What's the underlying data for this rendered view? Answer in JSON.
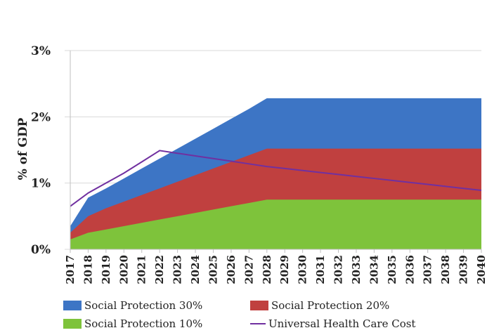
{
  "chart_data": {
    "type": "area",
    "ylabel": "% of GDP",
    "xlabel": "",
    "x": [
      "2017",
      "2018",
      "2019",
      "2020",
      "2021",
      "2022",
      "2023",
      "2024",
      "2025",
      "2026",
      "2027",
      "2028",
      "2029",
      "2030",
      "2031",
      "2032",
      "2033",
      "2034",
      "2035",
      "2036",
      "2037",
      "2038",
      "2039",
      "2040"
    ],
    "y_ticks": [
      "0%",
      "1%",
      "2%",
      "3%"
    ],
    "ylim": [
      0,
      3
    ],
    "grid": "horizontal",
    "legend_position": "bottom",
    "series": [
      {
        "name": "Social Protection 10%",
        "kind": "area",
        "color": "#7ec33b",
        "values": [
          0.15,
          0.25,
          0.3,
          0.35,
          0.4,
          0.45,
          0.5,
          0.55,
          0.6,
          0.65,
          0.7,
          0.75,
          0.75,
          0.75,
          0.75,
          0.75,
          0.75,
          0.75,
          0.75,
          0.75,
          0.75,
          0.75,
          0.75,
          0.75
        ]
      },
      {
        "name": "Social Protection 20%",
        "kind": "area",
        "color": "#c0403f",
        "values": [
          0.25,
          0.5,
          0.62,
          0.72,
          0.82,
          0.92,
          1.02,
          1.12,
          1.22,
          1.32,
          1.42,
          1.52,
          1.52,
          1.52,
          1.52,
          1.52,
          1.52,
          1.52,
          1.52,
          1.52,
          1.52,
          1.52,
          1.52,
          1.52
        ]
      },
      {
        "name": "Social Protection 30%",
        "kind": "area",
        "color": "#3d75c5",
        "values": [
          0.35,
          0.78,
          0.92,
          1.07,
          1.22,
          1.37,
          1.52,
          1.67,
          1.82,
          1.97,
          2.12,
          2.28,
          2.28,
          2.28,
          2.28,
          2.28,
          2.28,
          2.28,
          2.28,
          2.28,
          2.28,
          2.28,
          2.28,
          2.28
        ]
      },
      {
        "name": "Universal Health Care Cost",
        "kind": "line",
        "color": "#7030a0",
        "values": [
          0.65,
          0.85,
          1.0,
          1.15,
          1.32,
          1.49,
          1.45,
          1.41,
          1.37,
          1.33,
          1.29,
          1.25,
          1.22,
          1.19,
          1.16,
          1.13,
          1.1,
          1.07,
          1.04,
          1.01,
          0.98,
          0.95,
          0.92,
          0.89
        ]
      }
    ]
  }
}
